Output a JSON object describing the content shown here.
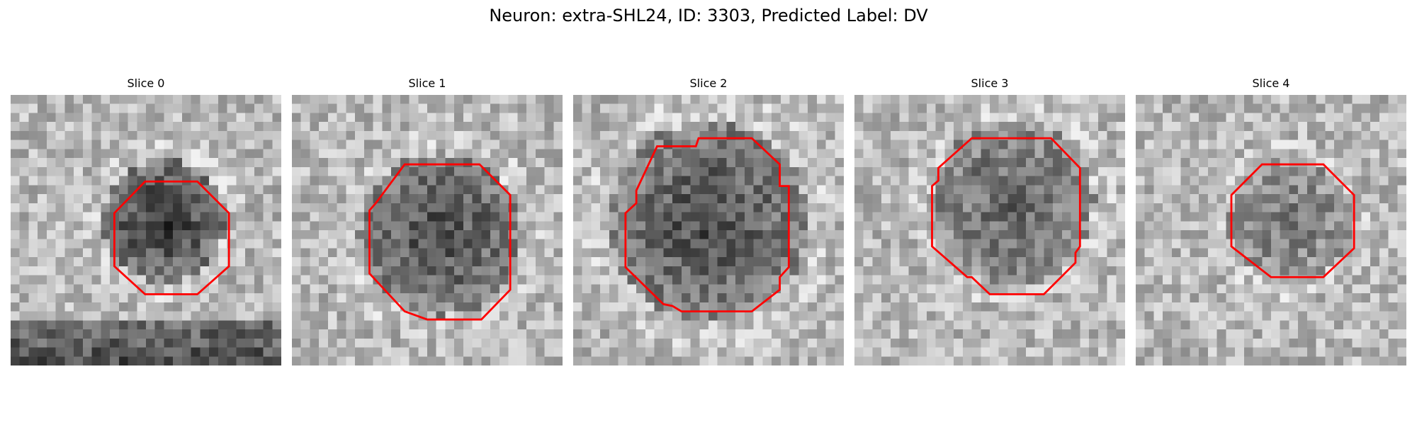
{
  "figure": {
    "suptitle": "Neuron: extra-SHL24, ID: 3303, Predicted Label: DV"
  },
  "panels": [
    {
      "title": "Slice 0"
    },
    {
      "title": "Slice 1"
    },
    {
      "title": "Slice 2"
    },
    {
      "title": "Slice 3"
    },
    {
      "title": "Slice 4"
    }
  ],
  "style": {
    "contour_color": "#ff0000",
    "colormap": "grayscale"
  }
}
